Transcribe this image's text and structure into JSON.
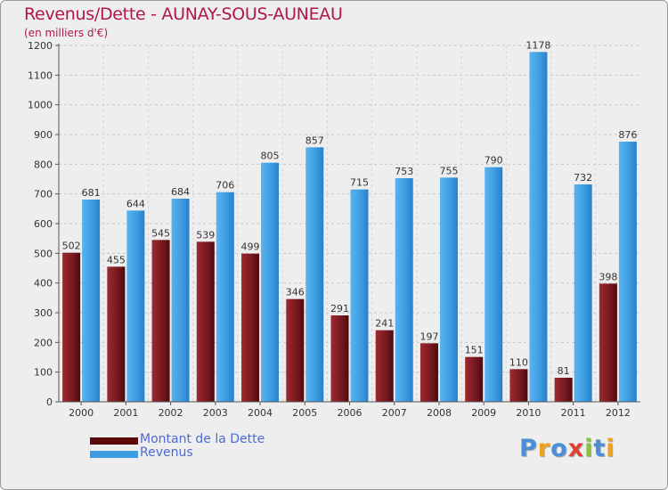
{
  "chart_data": {
    "type": "bar",
    "title": "Revenus/Dette - AUNAY-SOUS-AUNEAU",
    "subtitle": "(en milliers d'€)",
    "xlabel": "",
    "ylabel": "",
    "ylim": [
      0,
      1200
    ],
    "yticks": [
      "0",
      "100",
      "200",
      "300",
      "400",
      "500",
      "600",
      "700",
      "800",
      "900",
      "1000",
      "1100",
      "1200"
    ],
    "grid": true,
    "categories": [
      "2000",
      "2001",
      "2002",
      "2003",
      "2004",
      "2005",
      "2006",
      "2007",
      "2008",
      "2009",
      "2010",
      "2011",
      "2012"
    ],
    "series": [
      {
        "name": "Montant de la Dette",
        "color": "#7a1a20",
        "values": [
          502,
          455,
          545,
          539,
          499,
          346,
          291,
          241,
          197,
          151,
          110,
          81,
          398
        ]
      },
      {
        "name": "Revenus",
        "color": "#3d9de2",
        "values": [
          681,
          644,
          684,
          706,
          805,
          857,
          715,
          753,
          755,
          790,
          1178,
          732,
          876
        ]
      }
    ]
  },
  "legend": {
    "items": [
      {
        "label": "Montant de la Dette",
        "color": "#5c0a0a"
      },
      {
        "label": "Revenus",
        "color": "#3d9de2"
      }
    ]
  },
  "logo": {
    "letters": [
      "P",
      "r",
      "o",
      "x",
      "i",
      "t",
      "i"
    ],
    "colors": [
      "#4a8fd8",
      "#f0a020",
      "#4a8fd8",
      "#e04030",
      "#8cc040",
      "#4a8fd8",
      "#f0a020"
    ]
  }
}
